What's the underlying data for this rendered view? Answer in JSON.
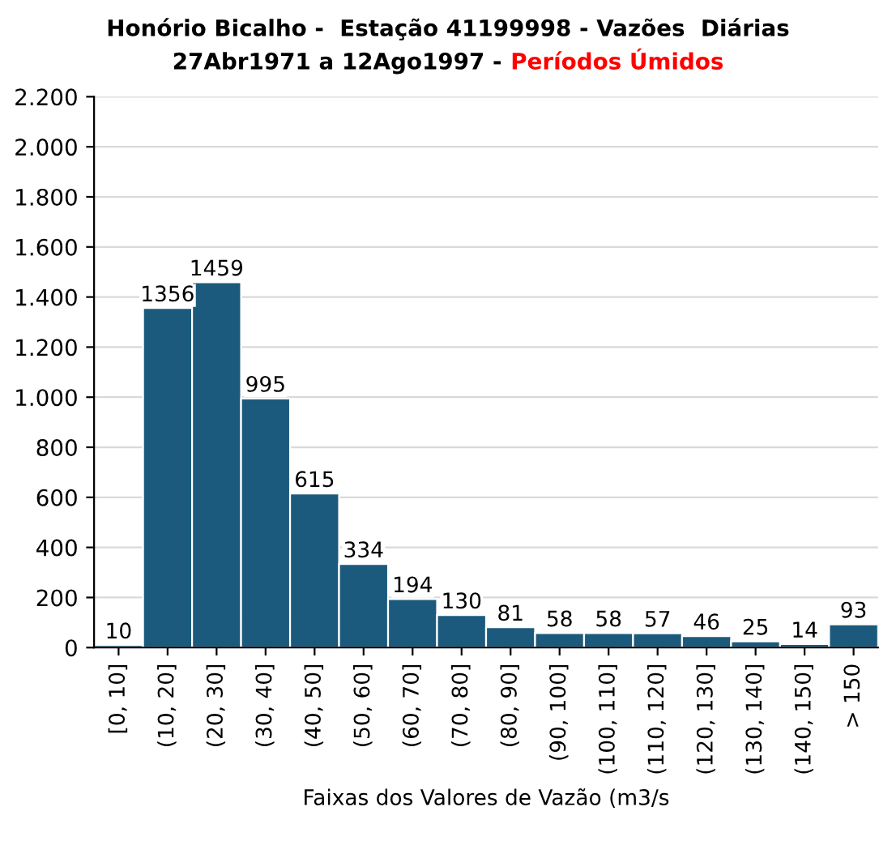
{
  "chart_data": {
    "type": "bar",
    "title": "Honório Bicalho -  Estação 41199998 - Vazões  Diárias",
    "subtitle": "27Abr1971 a 12Ago1997 -",
    "annotations": [
      "Períodos Úmidos"
    ],
    "xlabel": "Faixas dos Valores de Vazão (m3/s",
    "categories": [
      "[0, 10]",
      "(10, 20]",
      "(20, 30]",
      "(30, 40]",
      "(40, 50]",
      "(50, 60]",
      "(60, 70]",
      "(70, 80]",
      "(80, 90]",
      "(90, 100]",
      "(100, 110]",
      "(110, 120]",
      "(120, 130]",
      "(130, 140]",
      "(140, 150]",
      "> 150"
    ],
    "values": [
      10,
      1356,
      1459,
      995,
      615,
      334,
      194,
      130,
      81,
      58,
      58,
      57,
      46,
      25,
      14,
      93
    ],
    "color": "#1b5a7c",
    "data_labels": true,
    "ylim": [
      0,
      2200
    ],
    "yticks": [
      0,
      200,
      400,
      600,
      800,
      {
        "value": 1000,
        "label": "1.000"
      },
      {
        "value": 1200,
        "label": "1.200"
      },
      {
        "value": 1400,
        "label": "1.400"
      },
      {
        "value": 1600,
        "label": "1.600"
      },
      {
        "value": 1800,
        "label": "1.800"
      },
      {
        "value": 2000,
        "label": "2.000"
      },
      {
        "value": 2200,
        "label": "2.200"
      }
    ],
    "grid": "y"
  }
}
